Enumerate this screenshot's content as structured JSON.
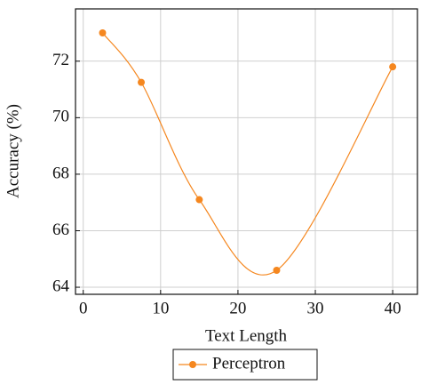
{
  "chart_data": {
    "type": "line",
    "xlabel": "Text Length",
    "ylabel": "Accuracy (%)",
    "series": [
      {
        "name": "Perceptron",
        "color": "#f5871f",
        "x": [
          2.5,
          7.5,
          15,
          25,
          40
        ],
        "values": [
          73.0,
          71.25,
          67.1,
          64.6,
          71.8
        ]
      }
    ],
    "xlim": [
      -1,
      43.2
    ],
    "ylim": [
      63.75,
      73.85
    ],
    "xticks": [
      0,
      10,
      20,
      30,
      40
    ],
    "yticks": [
      64,
      66,
      68,
      70,
      72
    ],
    "grid": true,
    "smooth": true,
    "legend": "bottom"
  }
}
